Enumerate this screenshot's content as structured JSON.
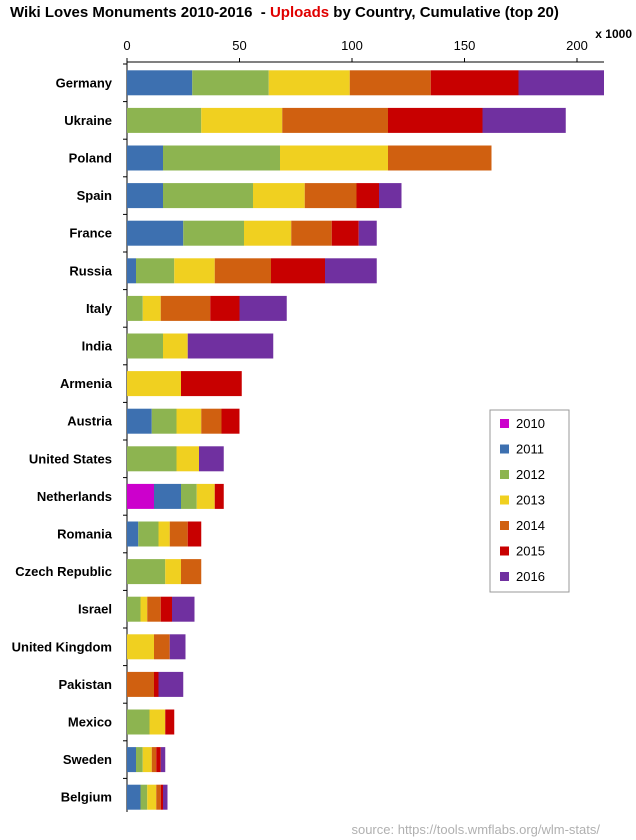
{
  "chart_data": {
    "type": "bar",
    "orientation": "horizontal",
    "stacked": true,
    "title_prefix": "Wiki Loves Monuments 2010-2016  - ",
    "title_accent": "Uploads",
    "title_suffix": " by Country, Cumulative (top 20)",
    "x_unit_label": "x 1000",
    "xlim": [
      0,
      212
    ],
    "xticks": [
      0,
      50,
      100,
      150,
      200
    ],
    "grid": false,
    "legend_position": "right",
    "categories": [
      "Germany",
      "Ukraine",
      "Poland",
      "Spain",
      "France",
      "Russia",
      "Italy",
      "India",
      "Armenia",
      "Austria",
      "United States",
      "Netherlands",
      "Romania",
      "Czech Republic",
      "Israel",
      "United Kingdom",
      "Pakistan",
      "Mexico",
      "Sweden",
      "Belgium"
    ],
    "series": [
      {
        "name": "2010",
        "color": "#cc00cc",
        "values": [
          0,
          0,
          0,
          0,
          0,
          0,
          0,
          0,
          0,
          0,
          0,
          12,
          0,
          0,
          0,
          0,
          0,
          0,
          0,
          0
        ]
      },
      {
        "name": "2011",
        "color": "#3d70b0",
        "values": [
          29,
          0,
          16,
          16,
          25,
          4,
          0,
          0,
          0,
          11,
          0,
          12,
          5,
          0,
          0,
          0,
          0,
          0,
          4,
          6
        ]
      },
      {
        "name": "2012",
        "color": "#8db450",
        "values": [
          34,
          33,
          52,
          40,
          27,
          17,
          7,
          16,
          0,
          11,
          22,
          7,
          9,
          17,
          6,
          0,
          0,
          10,
          3,
          3
        ]
      },
      {
        "name": "2013",
        "color": "#f0d020",
        "values": [
          36,
          36,
          48,
          23,
          21,
          18,
          8,
          11,
          24,
          11,
          10,
          8,
          5,
          7,
          3,
          12,
          0,
          7,
          4,
          4
        ]
      },
      {
        "name": "2014",
        "color": "#d06010",
        "values": [
          36,
          47,
          46,
          23,
          18,
          25,
          22,
          0,
          0,
          9,
          0,
          0,
          8,
          9,
          6,
          7,
          12,
          0,
          2,
          2
        ]
      },
      {
        "name": "2015",
        "color": "#c80000",
        "values": [
          39,
          42,
          0,
          10,
          12,
          24,
          13,
          0,
          27,
          8,
          0,
          4,
          6,
          0,
          5,
          0,
          2,
          4,
          2,
          1
        ]
      },
      {
        "name": "2016",
        "color": "#7030a0",
        "values": [
          38,
          37,
          0,
          10,
          8,
          23,
          21,
          38,
          0,
          0,
          11,
          0,
          0,
          0,
          10,
          7,
          11,
          0,
          2,
          2
        ]
      }
    ]
  },
  "source": "source: https://tools.wmflabs.org/wlm-stats/"
}
